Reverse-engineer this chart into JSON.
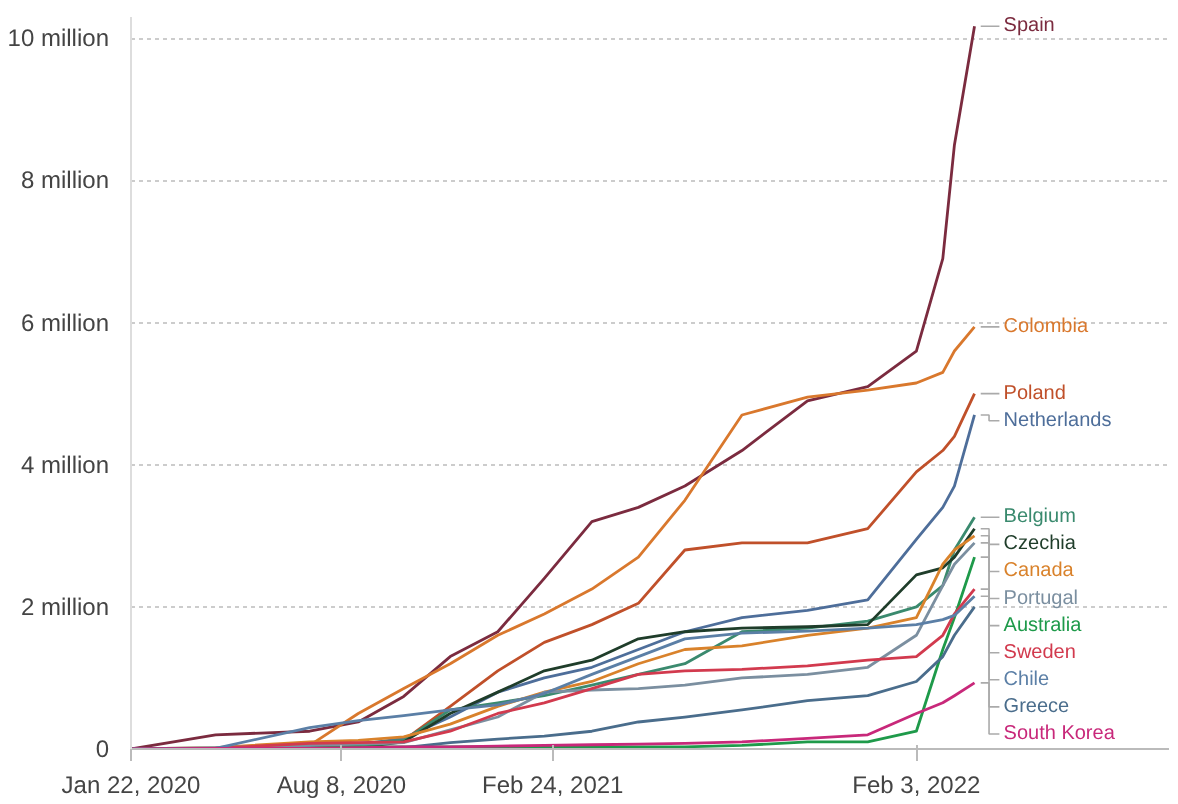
{
  "chart_data": {
    "type": "line",
    "x": [
      "2020-01-22",
      "2020-04-11",
      "2020-07-09",
      "2020-08-24",
      "2020-10-06",
      "2020-11-19",
      "2021-01-03",
      "2021-02-16",
      "2021-04-02",
      "2021-05-16",
      "2021-06-29",
      "2021-08-22",
      "2021-10-23",
      "2021-12-19",
      "2022-02-03",
      "2022-02-28",
      "2022-03-11",
      "2022-03-30"
    ],
    "series": [
      {
        "name": "Spain",
        "color": "#7b2b3f",
        "values": [
          0,
          200000,
          250000,
          380000,
          740000,
          1300000,
          1650000,
          2400000,
          3200000,
          3400000,
          3700000,
          4200000,
          4900000,
          5100000,
          5600000,
          6900000,
          8500000,
          10170000
        ]
      },
      {
        "name": "Colombia",
        "color": "#d9782d",
        "values": [
          0,
          0,
          50000,
          500000,
          850000,
          1200000,
          1600000,
          1900000,
          2250000,
          2700000,
          3500000,
          4700000,
          4950000,
          5050000,
          5150000,
          5300000,
          5600000,
          5940000
        ]
      },
      {
        "name": "Poland",
        "color": "#c0502a",
        "values": [
          0,
          0,
          30000,
          60000,
          120000,
          600000,
          1100000,
          1500000,
          1750000,
          2050000,
          2800000,
          2900000,
          2900000,
          3100000,
          3900000,
          4200000,
          4400000,
          5000000
        ]
      },
      {
        "name": "Netherlands",
        "color": "#4e6e9a",
        "values": [
          0,
          0,
          50000,
          60000,
          150000,
          450000,
          800000,
          1000000,
          1150000,
          1400000,
          1650000,
          1850000,
          1950000,
          2100000,
          2950000,
          3400000,
          3700000,
          4700000
        ]
      },
      {
        "name": "Belgium",
        "color": "#3a8a6e",
        "values": [
          0,
          10000,
          60000,
          80000,
          120000,
          550000,
          650000,
          750000,
          900000,
          1050000,
          1200000,
          1650000,
          1700000,
          1800000,
          2000000,
          2300000,
          2800000,
          3260000
        ]
      },
      {
        "name": "Czechia",
        "color": "#1f3d2a",
        "values": [
          0,
          0,
          10000,
          20000,
          100000,
          500000,
          800000,
          1100000,
          1250000,
          1550000,
          1650000,
          1700000,
          1720000,
          1750000,
          2450000,
          2550000,
          2700000,
          3100000
        ]
      },
      {
        "name": "Canada",
        "color": "#d9822b",
        "values": [
          0,
          20000,
          100000,
          120000,
          170000,
          350000,
          600000,
          800000,
          950000,
          1200000,
          1400000,
          1450000,
          1600000,
          1700000,
          1850000,
          2600000,
          2800000,
          3000000
        ]
      },
      {
        "name": "Portugal",
        "color": "#7b8fa0",
        "values": [
          0,
          20000,
          50000,
          60000,
          90000,
          270000,
          450000,
          800000,
          830000,
          850000,
          900000,
          1000000,
          1050000,
          1150000,
          1600000,
          2300000,
          2600000,
          2900000
        ]
      },
      {
        "name": "Australia",
        "color": "#1e9a4a",
        "values": [
          null,
          null,
          10000,
          30000,
          30000,
          30000,
          30000,
          30000,
          30000,
          30000,
          30000,
          50000,
          100000,
          100000,
          250000,
          1400000,
          1850000,
          2700000
        ]
      },
      {
        "name": "Sweden",
        "color": "#d23a4e",
        "values": [
          0,
          10000,
          80000,
          90000,
          100000,
          250000,
          500000,
          650000,
          850000,
          1050000,
          1100000,
          1120000,
          1170000,
          1250000,
          1300000,
          1600000,
          1900000,
          2250000
        ]
      },
      {
        "name": "Chile",
        "color": "#5b7fa6",
        "values": [
          0,
          10000,
          300000,
          400000,
          470000,
          550000,
          620000,
          780000,
          1050000,
          1300000,
          1550000,
          1630000,
          1660000,
          1700000,
          1750000,
          1820000,
          1880000,
          2150000
        ]
      },
      {
        "name": "Greece",
        "color": "#4a6d8c",
        "values": [
          0,
          0,
          0,
          10000,
          20000,
          90000,
          140000,
          180000,
          250000,
          380000,
          450000,
          550000,
          680000,
          750000,
          950000,
          1300000,
          1600000,
          2000000
        ]
      },
      {
        "name": "South Korea",
        "color": "#c8287a",
        "values": [
          0,
          10000,
          10000,
          20000,
          30000,
          30000,
          40000,
          50000,
          60000,
          70000,
          80000,
          100000,
          150000,
          200000,
          500000,
          650000,
          750000,
          930000
        ]
      }
    ],
    "xlim": [
      "2020-01-22",
      "2022-09-30"
    ],
    "xticks": [
      {
        "value": "2020-01-22",
        "label": "Jan 22, 2020"
      },
      {
        "value": "2020-08-08",
        "label": "Aug 8, 2020"
      },
      {
        "value": "2021-02-24",
        "label": "Feb 24, 2021"
      },
      {
        "value": "2022-02-03",
        "label": "Feb 3, 2022"
      }
    ],
    "ylim": [
      0,
      10300000
    ],
    "yticks": [
      0,
      {
        "value": 2000000,
        "label": "2 million"
      },
      {
        "value": 4000000,
        "label": "4 million"
      },
      {
        "value": 6000000,
        "label": "6 million"
      },
      {
        "value": 8000000,
        "label": "8 million"
      },
      {
        "value": 10000000,
        "label": "10 million"
      }
    ],
    "grid": "y",
    "marker": "none",
    "line_style": "solid"
  }
}
